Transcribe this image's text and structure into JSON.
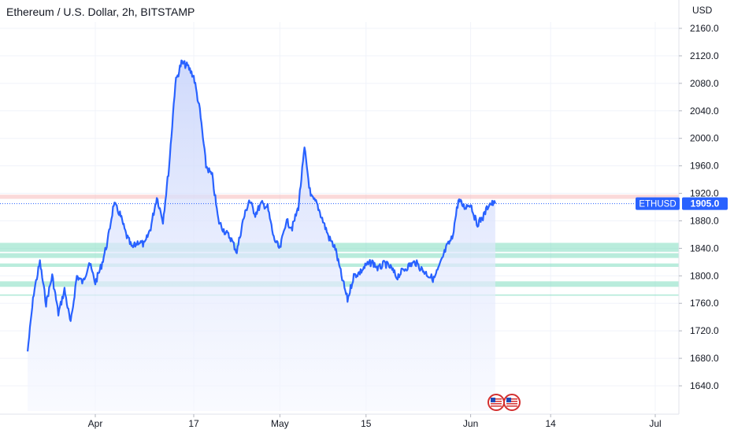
{
  "header": {
    "title": "Ethereum / U.S. Dollar, 2h, BITSTAMP",
    "currency": "USD"
  },
  "colors": {
    "line": "#2962ff",
    "area_top": "#c7d3fb",
    "area_bottom": "#f5f7ff",
    "resistance": "#f7b9b9",
    "support": "#7fdcc0",
    "axis_text": "#131722",
    "grid": "#f0f3fa"
  },
  "chart_data": {
    "type": "line",
    "symbol": "ETHUSD",
    "last_price": 1905,
    "last_price_label": "1905.0",
    "ylim": [
      1620,
      2180
    ],
    "y_ticks": [
      1640,
      1680,
      1720,
      1760,
      1800,
      1840,
      1880,
      1920,
      1960,
      2000,
      2040,
      2080,
      2120,
      2160
    ],
    "y_tick_labels": [
      "1640.0",
      "1680.0",
      "1720.0",
      "1760.0",
      "1800.0",
      "1840.0",
      "1880.0",
      "1920.0",
      "1960.0",
      "2000.0",
      "2040.0",
      "2080.0",
      "2120.0",
      "2160.0"
    ],
    "xlim": [
      "2023-03-21",
      "2023-07-06"
    ],
    "x_ticks": [
      {
        "date": "2023-04-01",
        "label": "Apr"
      },
      {
        "date": "2023-04-17",
        "label": "17"
      },
      {
        "date": "2023-05-01",
        "label": "May"
      },
      {
        "date": "2023-05-15",
        "label": "15"
      },
      {
        "date": "2023-06-01",
        "label": "Jun"
      },
      {
        "date": "2023-06-14",
        "label": "14"
      },
      {
        "date": "2023-07-01",
        "label": "Jul"
      }
    ],
    "resistance_zone": [
      1912,
      1918
    ],
    "support_zones": [
      [
        1835,
        1848
      ],
      [
        1826,
        1833
      ],
      [
        1813,
        1818
      ],
      [
        1784,
        1792
      ],
      [
        1771,
        1773
      ]
    ],
    "series": [
      {
        "x": [
          "2023-03-21",
          "2023-03-22",
          "2023-03-23",
          "2023-03-24",
          "2023-03-25",
          "2023-03-26",
          "2023-03-27",
          "2023-03-28",
          "2023-03-29",
          "2023-03-30",
          "2023-03-31",
          "2023-04-01",
          "2023-04-02",
          "2023-04-03",
          "2023-04-04",
          "2023-04-05",
          "2023-04-06",
          "2023-04-07",
          "2023-04-08",
          "2023-04-09",
          "2023-04-10",
          "2023-04-11",
          "2023-04-12",
          "2023-04-13",
          "2023-04-14",
          "2023-04-15",
          "2023-04-16",
          "2023-04-17",
          "2023-04-18",
          "2023-04-19",
          "2023-04-20",
          "2023-04-21",
          "2023-04-22",
          "2023-04-23",
          "2023-04-24",
          "2023-04-25",
          "2023-04-26",
          "2023-04-27",
          "2023-04-28",
          "2023-04-29",
          "2023-04-30",
          "2023-05-01",
          "2023-05-02",
          "2023-05-03",
          "2023-05-04",
          "2023-05-05",
          "2023-05-06",
          "2023-05-07",
          "2023-05-08",
          "2023-05-09",
          "2023-05-10",
          "2023-05-11",
          "2023-05-12",
          "2023-05-13",
          "2023-05-14",
          "2023-05-15",
          "2023-05-16",
          "2023-05-17",
          "2023-05-18",
          "2023-05-19",
          "2023-05-20",
          "2023-05-21",
          "2023-05-22",
          "2023-05-23",
          "2023-05-24",
          "2023-05-25",
          "2023-05-26",
          "2023-05-27",
          "2023-05-28",
          "2023-05-29",
          "2023-05-30",
          "2023-05-31",
          "2023-06-01",
          "2023-06-02",
          "2023-06-03",
          "2023-06-04",
          "2023-06-05"
        ],
        "y": [
          1690,
          1775,
          1820,
          1760,
          1800,
          1745,
          1780,
          1730,
          1800,
          1790,
          1820,
          1790,
          1815,
          1850,
          1905,
          1890,
          1860,
          1840,
          1850,
          1845,
          1870,
          1915,
          1880,
          1960,
          2080,
          2110,
          2105,
          2090,
          2040,
          1960,
          1945,
          1880,
          1865,
          1855,
          1835,
          1880,
          1910,
          1890,
          1905,
          1900,
          1855,
          1838,
          1880,
          1870,
          1900,
          1985,
          1915,
          1905,
          1880,
          1855,
          1840,
          1800,
          1765,
          1800,
          1805,
          1815,
          1820,
          1810,
          1818,
          1812,
          1798,
          1808,
          1815,
          1820,
          1810,
          1802,
          1795,
          1815,
          1840,
          1855,
          1910,
          1900,
          1905,
          1875,
          1885,
          1905,
          1905
        ]
      }
    ]
  },
  "footer": {
    "badge": "US economic events"
  }
}
